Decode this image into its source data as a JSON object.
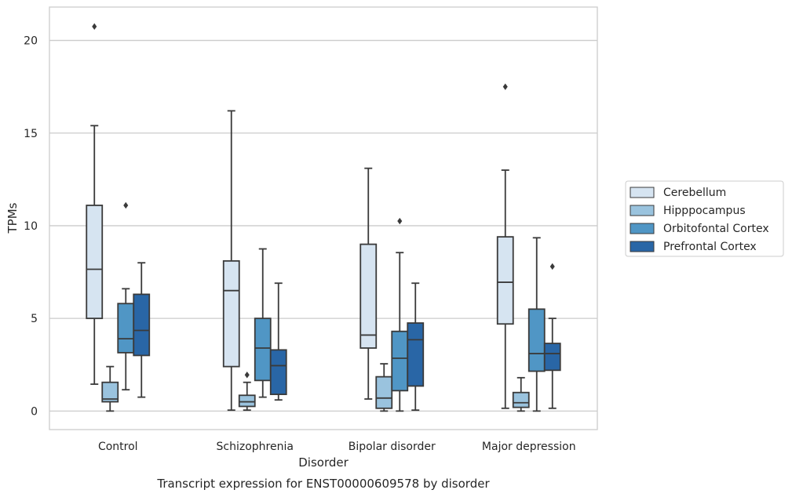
{
  "chart_data": {
    "type": "box",
    "title": "",
    "caption": "Transcript expression for ENST00000609578 by disorder",
    "xlabel": "Disorder",
    "ylabel": "TPMs",
    "ylim": [
      -1,
      21.8
    ],
    "yticks": [
      0,
      5,
      10,
      15,
      20
    ],
    "grid": "horizontal",
    "legend_position": "right",
    "categories": [
      "Control",
      "Schizophrenia",
      "Bipolar disorder",
      "Major depression"
    ],
    "series": [
      {
        "name": "Cerebellum",
        "color": "#d6e4f1",
        "boxes": [
          {
            "whisker_low": 1.45,
            "q1": 5.0,
            "median": 7.65,
            "q3": 11.1,
            "whisker_high": 15.4,
            "outliers": [
              20.75
            ]
          },
          {
            "whisker_low": 0.05,
            "q1": 2.4,
            "median": 6.5,
            "q3": 8.1,
            "whisker_high": 16.2,
            "outliers": []
          },
          {
            "whisker_low": 0.65,
            "q1": 3.4,
            "median": 4.1,
            "q3": 9.0,
            "whisker_high": 13.1,
            "outliers": []
          },
          {
            "whisker_low": 0.15,
            "q1": 4.7,
            "median": 6.95,
            "q3": 9.4,
            "whisker_high": 13.0,
            "outliers": [
              17.5
            ]
          }
        ]
      },
      {
        "name": "Hipppocampus",
        "color": "#9ac3de",
        "boxes": [
          {
            "whisker_low": 0.0,
            "q1": 0.5,
            "median": 0.65,
            "q3": 1.55,
            "whisker_high": 2.4,
            "outliers": []
          },
          {
            "whisker_low": 0.05,
            "q1": 0.25,
            "median": 0.5,
            "q3": 0.85,
            "whisker_high": 1.55,
            "outliers": [
              1.95
            ]
          },
          {
            "whisker_low": 0.0,
            "q1": 0.15,
            "median": 0.7,
            "q3": 1.85,
            "whisker_high": 2.55,
            "outliers": []
          },
          {
            "whisker_low": 0.0,
            "q1": 0.2,
            "median": 0.45,
            "q3": 1.0,
            "whisker_high": 1.8,
            "outliers": []
          }
        ]
      },
      {
        "name": "Orbitofontal Cortex",
        "color": "#5096c5",
        "boxes": [
          {
            "whisker_low": 1.15,
            "q1": 3.15,
            "median": 3.9,
            "q3": 5.8,
            "whisker_high": 6.6,
            "outliers": [
              11.1
            ]
          },
          {
            "whisker_low": 0.75,
            "q1": 1.65,
            "median": 3.4,
            "q3": 5.0,
            "whisker_high": 8.75,
            "outliers": []
          },
          {
            "whisker_low": 0.0,
            "q1": 1.1,
            "median": 2.85,
            "q3": 4.3,
            "whisker_high": 8.55,
            "outliers": [
              10.25
            ]
          },
          {
            "whisker_low": 0.0,
            "q1": 2.15,
            "median": 3.1,
            "q3": 5.5,
            "whisker_high": 9.35,
            "outliers": []
          }
        ]
      },
      {
        "name": "Prefrontal Cortex",
        "color": "#2966a6",
        "boxes": [
          {
            "whisker_low": 0.75,
            "q1": 3.0,
            "median": 4.35,
            "q3": 6.3,
            "whisker_high": 8.0,
            "outliers": []
          },
          {
            "whisker_low": 0.6,
            "q1": 0.9,
            "median": 2.45,
            "q3": 3.3,
            "whisker_high": 6.9,
            "outliers": []
          },
          {
            "whisker_low": 0.05,
            "q1": 1.35,
            "median": 3.85,
            "q3": 4.75,
            "whisker_high": 6.9,
            "outliers": []
          },
          {
            "whisker_low": 0.15,
            "q1": 2.2,
            "median": 3.1,
            "q3": 3.65,
            "whisker_high": 5.0,
            "outliers": [
              7.8
            ]
          }
        ]
      }
    ]
  }
}
